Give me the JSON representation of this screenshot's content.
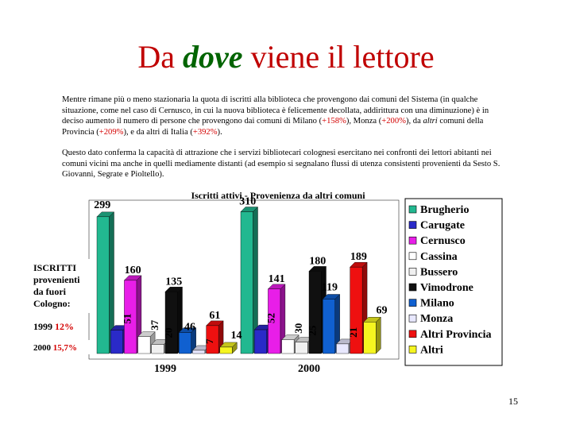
{
  "slide": {
    "title_before": "Da",
    "title_emph": "dove",
    "title_after": "viene il lettore",
    "paragraph1": {
      "t1": "Mentre rimane più o meno stazionaria la quota di iscritti alla biblioteca che provengono dai comuni del Sistema (in qualche situazione, come nel caso di Cernusco, in cui la nuova biblioteca è felicemente decollata, addirittura con una diminuzione) è in deciso aumento il numero di persone che provengono dai comuni di Milano (",
      "h1": "+158%",
      "t2": "), Monza (",
      "h2": "+200%",
      "t3": "), da ",
      "em": "altri",
      "t4": " comuni della Provincia (",
      "h3": "+209%",
      "t5": "), e da altri di Italia (",
      "h4": "+392%",
      "t6": ")."
    },
    "paragraph2": "Questo dato conferma la capacità di attrazione che i servizi bibliotecari colognesi esercitano nei confronti dei lettori abitanti nei comuni vicini ma anche in quelli mediamente distanti (ad esempio si segnalano flussi di utenza consistenti provenienti da Sesto S. Giovanni, Segrate e Pioltello).",
    "side_label": {
      "lines": [
        "ISCRITTI",
        "provenienti",
        "da fuori",
        "Cologno:"
      ],
      "y1999_year": "1999",
      "y1999_pct": "12%",
      "y2000_year": "2000",
      "y2000_pct": "15,7%"
    },
    "slide_number": "15"
  },
  "chart_data": {
    "type": "bar",
    "title": "Iscritti attivi - Provenienza da altri comuni",
    "categories": [
      "1999",
      "2000"
    ],
    "series": [
      {
        "name": "Brugherio",
        "values": [
          299,
          310
        ],
        "color": "#22b890"
      },
      {
        "name": "Carugate",
        "values": [
          51,
          52
        ],
        "color": "#2a2ac8"
      },
      {
        "name": "Cernusco",
        "values": [
          160,
          141
        ],
        "color": "#e81ee8"
      },
      {
        "name": "Cassina",
        "values": [
          37,
          30
        ],
        "color": "#ffffff"
      },
      {
        "name": "Bussero",
        "values": [
          20,
          25
        ],
        "color": "#f0f0f0"
      },
      {
        "name": "Vimodrone",
        "values": [
          135,
          180
        ],
        "color": "#101010"
      },
      {
        "name": "Milano",
        "values": [
          46,
          119
        ],
        "color": "#1060d0"
      },
      {
        "name": "Monza",
        "values": [
          7,
          21
        ],
        "color": "#e8e8ff"
      },
      {
        "name": "Altri Provincia",
        "values": [
          61,
          189
        ],
        "color": "#ee1010"
      },
      {
        "name": "Altri",
        "values": [
          14,
          69
        ],
        "color": "#f5f520"
      }
    ],
    "ylim": [
      0,
      330
    ],
    "legend": "right",
    "grid": false
  }
}
